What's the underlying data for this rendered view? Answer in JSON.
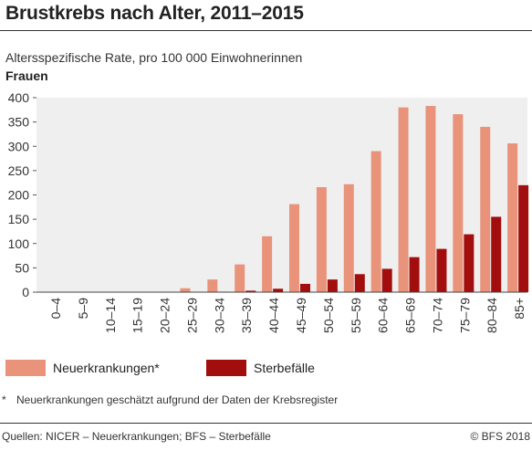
{
  "header": {
    "title": "Brustkrebs nach Alter, 2011–2015",
    "subtitle": "Altersspezifische Rate, pro 100 000 Einwohnerinnen",
    "group_label": "Frauen"
  },
  "chart_data": {
    "type": "bar",
    "categories": [
      "0–4",
      "5–9",
      "10–14",
      "15–19",
      "20–24",
      "25–29",
      "30–34",
      "35–39",
      "40–44",
      "45–49",
      "50–54",
      "55–59",
      "60–64",
      "65–69",
      "70–74",
      "75–79",
      "80–84",
      "85+"
    ],
    "series": [
      {
        "name": "Neuerkrankungen*",
        "color": "#e8937a",
        "values": [
          0,
          0,
          0,
          0,
          0.5,
          8,
          26,
          57,
          115,
          181,
          216,
          222,
          290,
          380,
          383,
          366,
          340,
          306
        ]
      },
      {
        "name": "Sterbefälle",
        "color": "#a20d0d",
        "values": [
          0,
          0,
          0,
          0,
          0,
          0.3,
          1,
          3,
          7,
          17,
          26,
          37,
          48,
          72,
          89,
          119,
          155,
          220
        ]
      }
    ],
    "ylim": [
      0,
      400
    ],
    "yticks": [
      0,
      50,
      100,
      150,
      200,
      250,
      300,
      350,
      400
    ],
    "grid": false,
    "legend_position": "bottom"
  },
  "legend": {
    "items": [
      {
        "label": "Neuerkrankungen*",
        "color": "#e8937a"
      },
      {
        "label": "Sterbefälle",
        "color": "#a20d0d"
      }
    ]
  },
  "footnote": {
    "mark": "*",
    "text": "Neuerkrankungen geschätzt aufgrund der Daten der Krebsregister"
  },
  "footer": {
    "source": "Quellen: NICER – Neuerkrankungen; BFS – Sterbefälle",
    "copyright": "© BFS 2018"
  }
}
